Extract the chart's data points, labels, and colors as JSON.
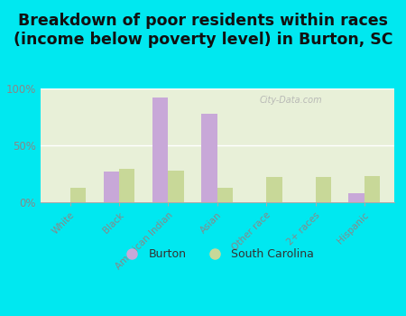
{
  "title": "Breakdown of poor residents within races\n(income below poverty level) in Burton, SC",
  "categories": [
    "White",
    "Black",
    "American Indian",
    "Asian",
    "Other race",
    "2+ races",
    "Hispanic"
  ],
  "burton_values": [
    0,
    27,
    92,
    78,
    0,
    0,
    8
  ],
  "sc_values": [
    13,
    29,
    28,
    13,
    22,
    22,
    23
  ],
  "burton_color": "#c8a8d8",
  "sc_color": "#c8d898",
  "bg_outer": "#00e8f0",
  "bg_plot_top": "#e8f0d8",
  "bg_plot_bottom": "#d0e8c8",
  "ylim": [
    0,
    100
  ],
  "yticks": [
    0,
    50,
    100
  ],
  "ytick_labels": [
    "0%",
    "50%",
    "100%"
  ],
  "title_fontsize": 12.5,
  "legend_labels": [
    "Burton",
    "South Carolina"
  ],
  "watermark": "City-Data.com",
  "grid_color": "#f0f0f0",
  "axis_color": "#aaaaaa",
  "tick_label_color": "#888888"
}
